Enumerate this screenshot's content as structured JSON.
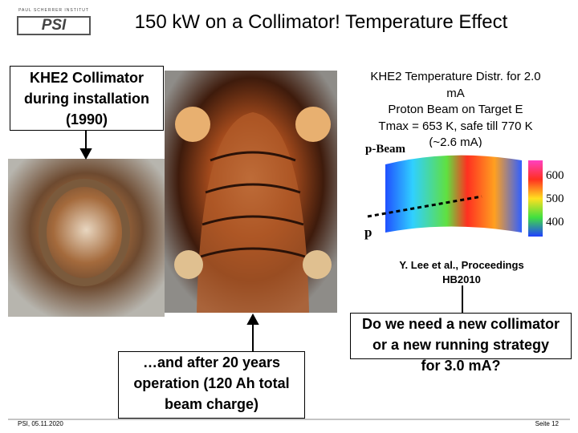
{
  "header": {
    "logo_small": "PAUL SCHERRER INSTITUT",
    "logo": "PSI",
    "title": "150 kW on a Collimator!  Temperature Effect"
  },
  "left_box": {
    "lines": [
      "KHE2 Collimator",
      "during installation",
      "(1990)"
    ]
  },
  "top_right": {
    "lines": [
      "KHE2 Temperature Distr. for 2.0",
      "mA",
      "Proton Beam on Target E",
      "Tmax = 653 K,   safe till 770 K",
      "(~2.6 mA)"
    ]
  },
  "figure": {
    "beam_label": "p-Beam",
    "p_label": "p",
    "colorbar": [
      "600",
      "500",
      "400"
    ]
  },
  "reference": {
    "lines": [
      "Y. Lee et al., Proceedings",
      "HB2010"
    ]
  },
  "question_box": {
    "lines": [
      "Do we need a new collimator",
      "or a new running strategy",
      "for 3.0 mA?"
    ]
  },
  "bottom_box": {
    "lines": [
      "…and after 20 years",
      "operation (120 Ah total",
      "beam charge)"
    ]
  },
  "footer": {
    "left": "PSI, 05.11.2020",
    "right": "Seite 12"
  }
}
